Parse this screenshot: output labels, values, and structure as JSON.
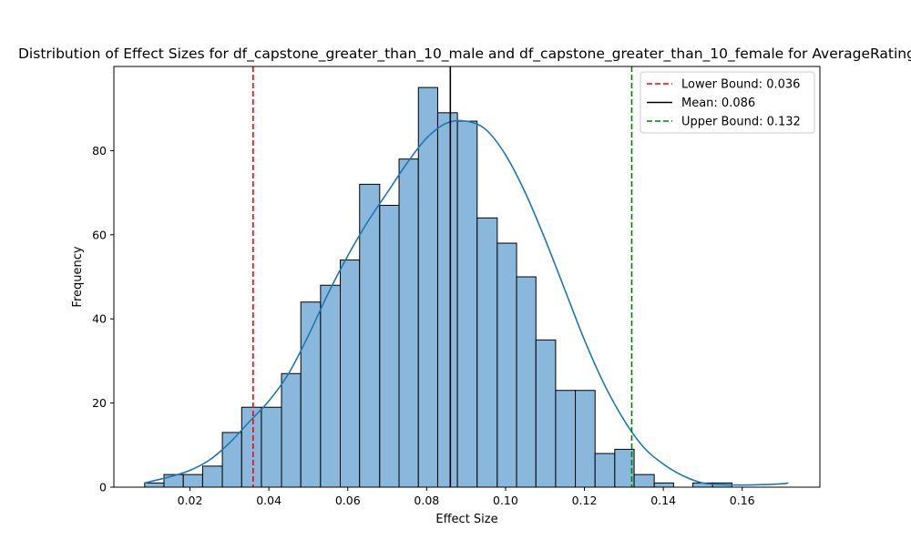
{
  "chart_data": {
    "type": "bar",
    "title": "Distribution of Effect Sizes for df_capstone_greater_than_10_male and df_capstone_greater_than_10_female for AverageRating",
    "xlabel": "Effect Size",
    "ylabel": "Frequency",
    "xlim": [
      0.0007,
      0.1797
    ],
    "ylim": [
      0,
      100
    ],
    "xticks": [
      0.02,
      0.04,
      0.06,
      0.08,
      0.1,
      0.12,
      0.14,
      0.16
    ],
    "xtick_labels": [
      "0.02",
      "0.04",
      "0.06",
      "0.08",
      "0.10",
      "0.12",
      "0.14",
      "0.16"
    ],
    "yticks": [
      0,
      20,
      40,
      60,
      80
    ],
    "ytick_labels": [
      "0",
      "20",
      "40",
      "60",
      "80"
    ],
    "grid": false,
    "legend_position": "top-right",
    "bar_color": "#8ab8dc",
    "bar_edge_color": "#000000",
    "kde_color": "#1f77b4",
    "bins": [
      {
        "start": 0.0085,
        "end": 0.0134,
        "count": 1
      },
      {
        "start": 0.0134,
        "end": 0.0183,
        "count": 3
      },
      {
        "start": 0.0183,
        "end": 0.0232,
        "count": 3
      },
      {
        "start": 0.0232,
        "end": 0.0282,
        "count": 5
      },
      {
        "start": 0.0282,
        "end": 0.0331,
        "count": 13
      },
      {
        "start": 0.0331,
        "end": 0.0381,
        "count": 19
      },
      {
        "start": 0.0381,
        "end": 0.0432,
        "count": 19
      },
      {
        "start": 0.0432,
        "end": 0.0481,
        "count": 27
      },
      {
        "start": 0.0481,
        "end": 0.0531,
        "count": 44
      },
      {
        "start": 0.0531,
        "end": 0.0581,
        "count": 48
      },
      {
        "start": 0.0581,
        "end": 0.063,
        "count": 54
      },
      {
        "start": 0.063,
        "end": 0.0681,
        "count": 72
      },
      {
        "start": 0.0681,
        "end": 0.073,
        "count": 67
      },
      {
        "start": 0.073,
        "end": 0.0779,
        "count": 78
      },
      {
        "start": 0.0779,
        "end": 0.0828,
        "count": 95
      },
      {
        "start": 0.0828,
        "end": 0.0878,
        "count": 89
      },
      {
        "start": 0.0878,
        "end": 0.0928,
        "count": 87
      },
      {
        "start": 0.0928,
        "end": 0.0979,
        "count": 64
      },
      {
        "start": 0.0979,
        "end": 0.1028,
        "count": 58
      },
      {
        "start": 0.1028,
        "end": 0.1077,
        "count": 50
      },
      {
        "start": 0.1077,
        "end": 0.1127,
        "count": 35
      },
      {
        "start": 0.1127,
        "end": 0.1177,
        "count": 23
      },
      {
        "start": 0.1177,
        "end": 0.1227,
        "count": 23
      },
      {
        "start": 0.1227,
        "end": 0.1277,
        "count": 8
      },
      {
        "start": 0.1277,
        "end": 0.1326,
        "count": 9
      },
      {
        "start": 0.1326,
        "end": 0.1377,
        "count": 3
      },
      {
        "start": 0.1377,
        "end": 0.1426,
        "count": 1
      },
      {
        "start": 0.1426,
        "end": 0.1475,
        "count": 0
      },
      {
        "start": 0.1475,
        "end": 0.1525,
        "count": 1
      },
      {
        "start": 0.1525,
        "end": 0.1574,
        "count": 1
      }
    ],
    "kde": {
      "x": [
        0.0085,
        0.015,
        0.02,
        0.025,
        0.03,
        0.035,
        0.04,
        0.045,
        0.05,
        0.055,
        0.06,
        0.065,
        0.07,
        0.075,
        0.08,
        0.085,
        0.09,
        0.095,
        0.1,
        0.105,
        0.11,
        0.115,
        0.12,
        0.125,
        0.13,
        0.135,
        0.14,
        0.145,
        0.15,
        0.155,
        0.16,
        0.165,
        0.17,
        0.1717
      ],
      "y": [
        1,
        2.5,
        4,
        6.5,
        10.5,
        15.5,
        20.5,
        27,
        36,
        46,
        55,
        63,
        70,
        77,
        83,
        86.5,
        87,
        85,
        79,
        70,
        59,
        47,
        35,
        24.5,
        16,
        9.5,
        5.5,
        2.7,
        1,
        0.6,
        0.5,
        0.6,
        0.8,
        1
      ]
    },
    "reference_lines": [
      {
        "label": "Lower Bound: 0.036",
        "x": 0.036,
        "color": "#ff0000",
        "style": "dashed"
      },
      {
        "label": "Mean: 0.086",
        "x": 0.086,
        "color": "#000000",
        "style": "solid"
      },
      {
        "label": "Upper Bound: 0.132",
        "x": 0.132,
        "color": "#008000",
        "style": "dashed"
      }
    ]
  }
}
